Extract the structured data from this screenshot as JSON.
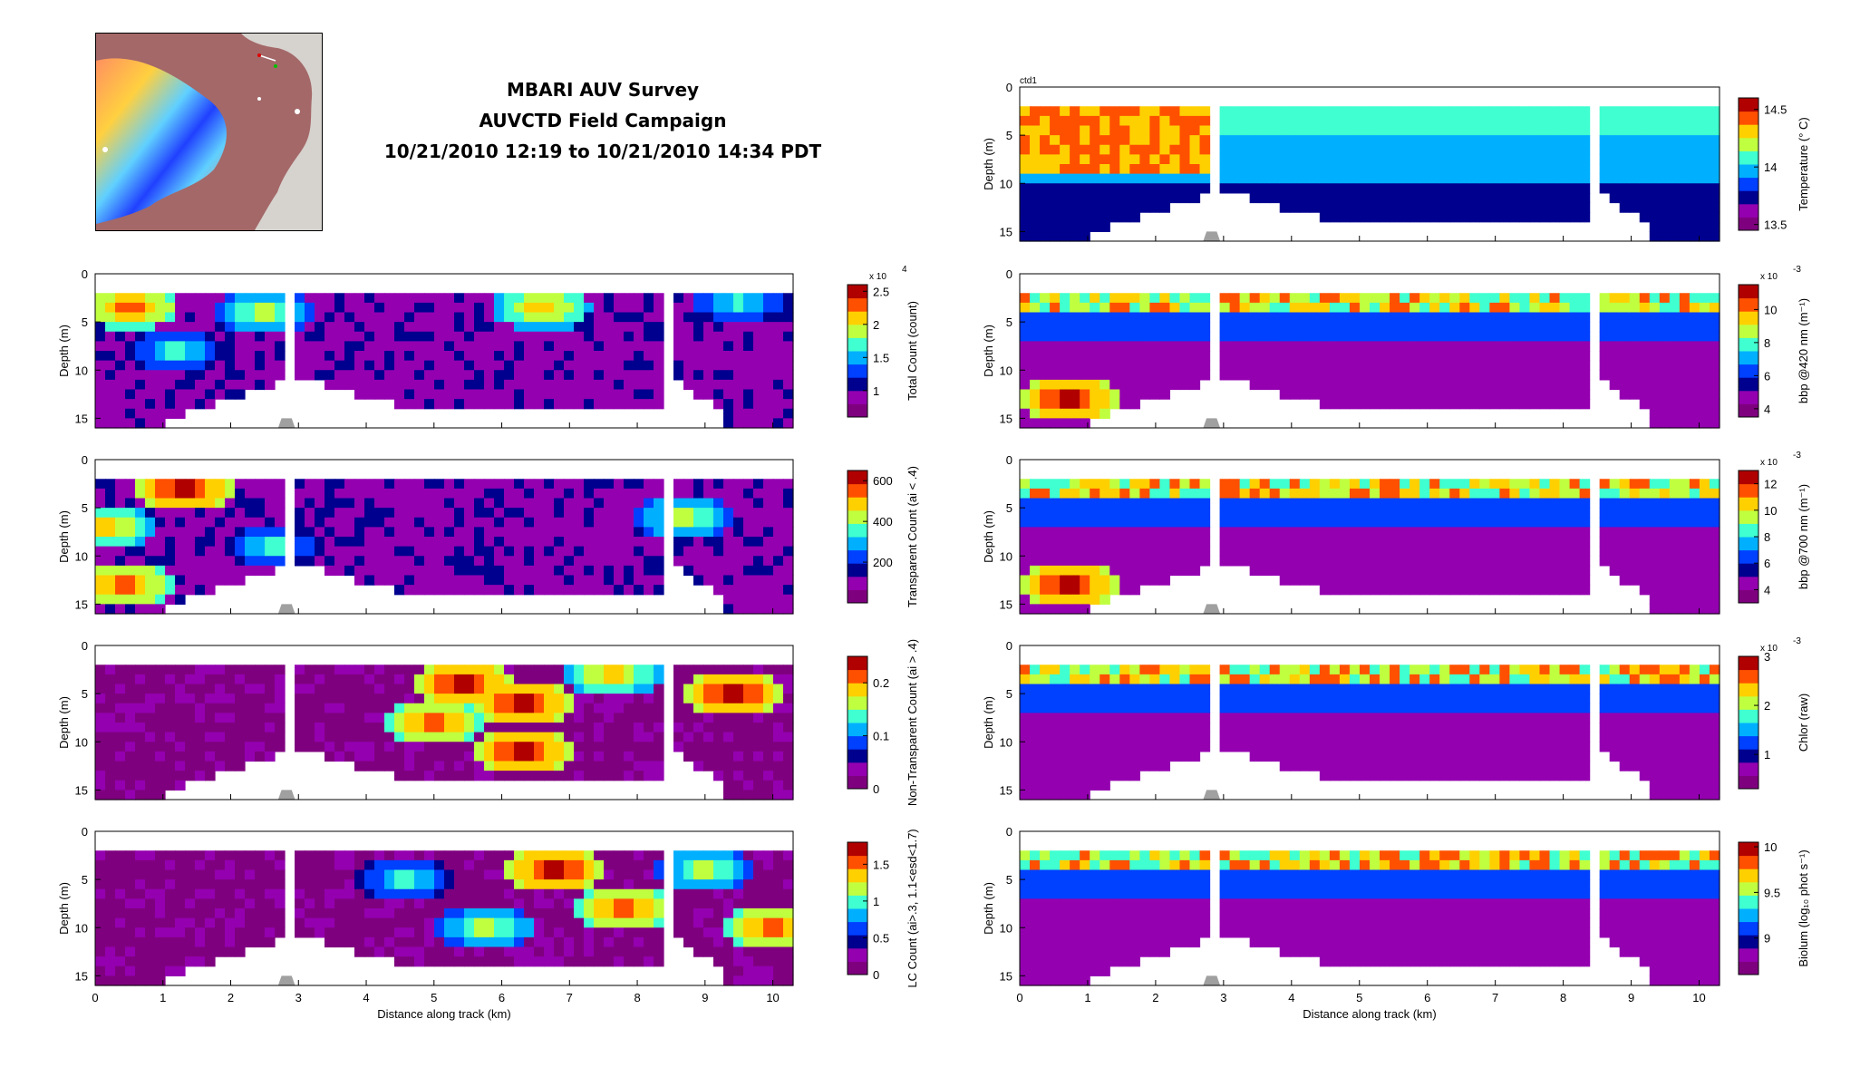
{
  "header": {
    "line1": "MBARI AUV Survey",
    "line2": "AUVCTD Field Campaign",
    "line3": "10/21/2010 12:19 to 10/21/2010 14:34 PDT"
  },
  "colors": {
    "jet": [
      "#7f007f",
      "#9400b0",
      "#00008f",
      "#0040ff",
      "#00b0ff",
      "#40ffd0",
      "#c0ff40",
      "#ffd000",
      "#ff5000",
      "#b00000"
    ],
    "frame": "#000000",
    "vehicle": "#a0a0a0"
  },
  "chart_data": [
    {
      "id": "total-count",
      "type": "heatmap",
      "xlabel": "",
      "ylabel": "Depth (m)",
      "xlim": [
        0,
        10.3
      ],
      "ylim": [
        0,
        16
      ],
      "yticks": [
        "0",
        "5",
        "10",
        "15"
      ],
      "colorbar": {
        "label": "Total Count (count)",
        "exponent": "x 10",
        "exponent_power": "4",
        "ticks": [
          "2.5",
          "2",
          "1.5",
          "1"
        ],
        "tick_values": [
          2.5,
          2,
          1.5,
          1
        ],
        "range": [
          0.6,
          2.6
        ]
      },
      "dominant_level": 1,
      "hot_spots": [
        [
          0.5,
          3.5,
          8
        ],
        [
          2.5,
          4,
          6
        ],
        [
          6.6,
          3.5,
          7
        ],
        [
          9.5,
          3,
          5
        ],
        [
          1.2,
          8,
          5
        ]
      ],
      "annotation": ""
    },
    {
      "id": "transparent-count",
      "type": "heatmap",
      "xlabel": "",
      "ylabel": "Depth (m)",
      "xlim": [
        0,
        10.3
      ],
      "ylim": [
        0,
        16
      ],
      "yticks": [
        "0",
        "5",
        "10",
        "15"
      ],
      "colorbar": {
        "label": "Transparent Count (ai < .4)",
        "exponent": "",
        "exponent_power": "",
        "ticks": [
          "600",
          "400",
          "200"
        ],
        "tick_values": [
          600,
          400,
          200
        ],
        "range": [
          0,
          650
        ]
      },
      "dominant_level": 1,
      "hot_spots": [
        [
          1.3,
          3,
          9
        ],
        [
          0.2,
          7,
          7
        ],
        [
          0.4,
          13,
          8
        ],
        [
          2.6,
          9,
          5
        ],
        [
          8.7,
          6,
          6
        ]
      ],
      "annotation": ""
    },
    {
      "id": "non-transparent-count",
      "type": "heatmap",
      "xlabel": "",
      "ylabel": "Depth (m)",
      "xlim": [
        0,
        10.3
      ],
      "ylim": [
        0,
        16
      ],
      "yticks": [
        "0",
        "5",
        "10",
        "15"
      ],
      "colorbar": {
        "label": "Non-Transparent Count (ai > .4)",
        "exponent": "",
        "exponent_power": "",
        "ticks": [
          "0.2",
          "0.1",
          "0"
        ],
        "tick_values": [
          0.2,
          0.1,
          0
        ],
        "range": [
          0,
          0.25
        ]
      },
      "dominant_level": 0,
      "hot_spots": [
        [
          5.4,
          4,
          9
        ],
        [
          6.3,
          6,
          9
        ],
        [
          6.3,
          11,
          9
        ],
        [
          9.4,
          5,
          9
        ],
        [
          5.0,
          8,
          8
        ],
        [
          7.6,
          3,
          7
        ]
      ],
      "annotation": ""
    },
    {
      "id": "lc-count",
      "type": "heatmap",
      "xlabel": "Distance along track (km)",
      "ylabel": "Depth (m)",
      "xlim": [
        0,
        10.3
      ],
      "ylim": [
        0,
        16
      ],
      "xticks": [
        "0",
        "1",
        "2",
        "3",
        "4",
        "5",
        "6",
        "7",
        "8",
        "9",
        "10"
      ],
      "yticks": [
        "0",
        "5",
        "10",
        "15"
      ],
      "colorbar": {
        "label": "LC Count (ai>.3, 1.1<esd<1.7)",
        "exponent": "",
        "exponent_power": "",
        "ticks": [
          "1.5",
          "1",
          "0.5",
          "0"
        ],
        "tick_values": [
          1.5,
          1,
          0.5,
          0
        ],
        "range": [
          0,
          1.8
        ]
      },
      "dominant_level": 0,
      "hot_spots": [
        [
          6.8,
          4,
          9
        ],
        [
          7.8,
          8,
          8
        ],
        [
          5.8,
          10,
          6
        ],
        [
          10,
          10,
          8
        ],
        [
          9,
          4,
          6
        ],
        [
          4.6,
          5,
          5
        ]
      ],
      "annotation": ""
    },
    {
      "id": "temperature",
      "type": "heatmap",
      "xlabel": "",
      "ylabel": "Depth (m)",
      "xlim": [
        0,
        10.3
      ],
      "ylim": [
        0,
        16
      ],
      "yticks": [
        "0",
        "5",
        "10",
        "15"
      ],
      "colorbar": {
        "label": "Temperature (° C)",
        "exponent": "",
        "exponent_power": "",
        "ticks": [
          "14.5",
          "14",
          "13.5"
        ],
        "tick_values": [
          14.5,
          14,
          13.5
        ],
        "range": [
          13.45,
          14.6
        ]
      },
      "dominant_level": 5,
      "hot_spots": [],
      "annotation": "ctd1"
    },
    {
      "id": "bbp420",
      "type": "heatmap",
      "xlabel": "",
      "ylabel": "Depth (m)",
      "xlim": [
        0,
        10.3
      ],
      "ylim": [
        0,
        16
      ],
      "yticks": [
        "0",
        "5",
        "10",
        "15"
      ],
      "colorbar": {
        "label": "bbp @420 nm (m⁻¹)",
        "exponent": "x 10",
        "exponent_power": "-3",
        "ticks": [
          "10",
          "8",
          "6",
          "4"
        ],
        "tick_values": [
          10,
          8,
          6,
          4
        ],
        "range": [
          3.5,
          11.5
        ]
      },
      "dominant_level": 1,
      "hot_spots": [
        [
          0.7,
          13,
          9
        ]
      ],
      "annotation": ""
    },
    {
      "id": "bbp700",
      "type": "heatmap",
      "xlabel": "",
      "ylabel": "Depth (m)",
      "xlim": [
        0,
        10.3
      ],
      "ylim": [
        0,
        16
      ],
      "yticks": [
        "0",
        "5",
        "10",
        "15"
      ],
      "colorbar": {
        "label": "bbp @700 nm (m⁻¹)",
        "exponent": "x 10",
        "exponent_power": "-3",
        "ticks": [
          "12",
          "10",
          "8",
          "6",
          "4"
        ],
        "tick_values": [
          12,
          10,
          8,
          6,
          4
        ],
        "range": [
          3,
          13
        ]
      },
      "dominant_level": 1,
      "hot_spots": [
        [
          0.7,
          13,
          9
        ]
      ],
      "annotation": ""
    },
    {
      "id": "chlor",
      "type": "heatmap",
      "xlabel": "",
      "ylabel": "Depth (m)",
      "xlim": [
        0,
        10.3
      ],
      "ylim": [
        0,
        16
      ],
      "yticks": [
        "0",
        "5",
        "10",
        "15"
      ],
      "colorbar": {
        "label": "Chlor (raw)",
        "exponent": "x 10",
        "exponent_power": "-3",
        "ticks": [
          "3",
          "2",
          "1"
        ],
        "tick_values": [
          3,
          2,
          1
        ],
        "range": [
          0.3,
          3
        ]
      },
      "dominant_level": 1,
      "hot_spots": [],
      "annotation": ""
    },
    {
      "id": "biolum",
      "type": "heatmap",
      "xlabel": "Distance along track (km)",
      "ylabel": "Depth (m)",
      "xlim": [
        0,
        10.3
      ],
      "ylim": [
        0,
        16
      ],
      "xticks": [
        "0",
        "1",
        "2",
        "3",
        "4",
        "5",
        "6",
        "7",
        "8",
        "9",
        "10"
      ],
      "yticks": [
        "0",
        "5",
        "10",
        "15"
      ],
      "colorbar": {
        "label": "Biolum (log₁₀ phot s⁻¹)",
        "exponent": "",
        "exponent_power": "",
        "ticks": [
          "10",
          "9.5",
          "9"
        ],
        "tick_values": [
          10,
          9.5,
          9
        ],
        "range": [
          8.6,
          10.05
        ]
      },
      "dominant_level": 1,
      "hot_spots": [],
      "annotation": ""
    }
  ]
}
